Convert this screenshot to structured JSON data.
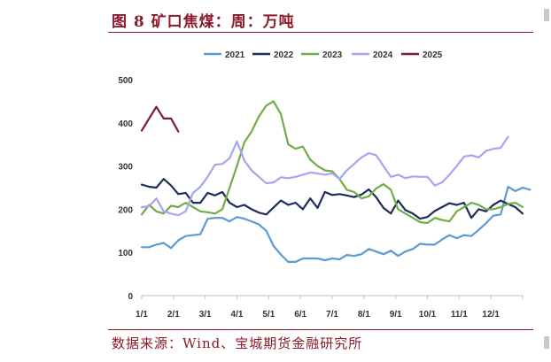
{
  "header": {
    "title": "图 8 矿口焦煤：周：万吨"
  },
  "footer": {
    "source": "数据来源：Wind、宝城期货金融研究所"
  },
  "chart_data": {
    "type": "line",
    "title": "图 8 矿口焦煤：周：万吨",
    "xlabel": "",
    "ylabel": "",
    "ylim": [
      0,
      500
    ],
    "yticks": [
      0,
      100,
      200,
      300,
      400,
      500
    ],
    "xtick_labels": [
      "1/1",
      "2/1",
      "3/1",
      "4/1",
      "5/1",
      "6/1",
      "7/1",
      "8/1",
      "9/1",
      "10/1",
      "11/1",
      "12/1"
    ],
    "x_range_weeks": [
      0,
      52
    ],
    "grid": false,
    "legend": "top",
    "series": [
      {
        "name": "2021",
        "color": "#5b9bd5",
        "values": [
          112,
          112,
          118,
          122,
          110,
          128,
          138,
          140,
          142,
          178,
          180,
          180,
          172,
          182,
          178,
          172,
          165,
          150,
          115,
          95,
          78,
          78,
          86,
          86,
          86,
          82,
          86,
          84,
          94,
          92,
          96,
          108,
          102,
          96,
          104,
          92,
          102,
          108,
          120,
          118,
          118,
          130,
          140,
          133,
          140,
          138,
          152,
          168,
          185,
          188,
          252,
          242,
          250,
          245
        ]
      },
      {
        "name": "2022",
        "color": "#1f2d5c",
        "values": [
          257,
          252,
          250,
          270,
          255,
          235,
          238,
          215,
          215,
          238,
          232,
          240,
          215,
          205,
          210,
          200,
          192,
          188,
          204,
          220,
          210,
          215,
          200,
          225,
          203,
          240,
          233,
          235,
          232,
          228,
          234,
          246,
          228,
          203,
          190,
          220,
          198,
          190,
          178,
          182,
          196,
          205,
          214,
          210,
          215,
          180,
          200,
          195,
          210,
          220,
          212,
          205,
          190
        ]
      },
      {
        "name": "2023",
        "color": "#70ad47",
        "values": [
          188,
          210,
          195,
          190,
          208,
          205,
          215,
          205,
          195,
          193,
          190,
          200,
          250,
          300,
          355,
          380,
          415,
          440,
          450,
          420,
          350,
          340,
          345,
          315,
          300,
          290,
          288,
          270,
          245,
          240,
          225,
          230,
          248,
          258,
          245,
          200,
          190,
          180,
          170,
          168,
          180,
          175,
          172,
          195,
          205,
          215,
          210,
          200,
          200,
          205,
          212,
          215,
          205
        ]
      },
      {
        "name": "2024",
        "color": "#a9a4f2",
        "values": [
          205,
          207,
          225,
          195,
          190,
          186,
          195,
          238,
          252,
          275,
          303,
          305,
          318,
          357,
          313,
          290,
          275,
          260,
          262,
          274,
          272,
          275,
          280,
          285,
          283,
          280,
          283,
          270,
          290,
          305,
          320,
          330,
          325,
          300,
          275,
          280,
          272,
          276,
          275,
          275,
          255,
          262,
          280,
          300,
          322,
          325,
          320,
          335,
          340,
          342,
          368
        ]
      },
      {
        "name": "2025",
        "color": "#7b1a3a",
        "values": [
          382,
          410,
          437,
          410,
          410,
          380
        ]
      }
    ]
  }
}
